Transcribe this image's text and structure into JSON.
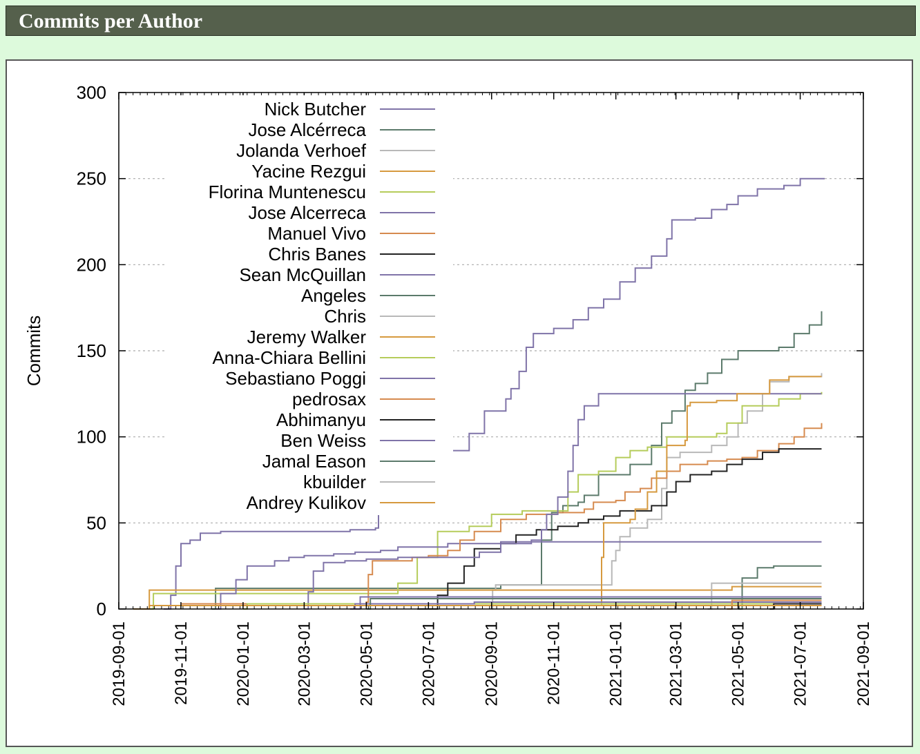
{
  "header": {
    "title": "Commits per Author"
  },
  "colors": {
    "header_bg": "#55604c",
    "page_bg": "#ddfadc"
  },
  "chart_data": {
    "type": "line",
    "title": "",
    "xlabel": "",
    "ylabel": "Commits",
    "x_type": "date",
    "xlim": [
      "2019-09-01",
      "2021-09-01"
    ],
    "ylim": [
      0,
      300
    ],
    "xticks": [
      "2019-09-01",
      "2019-11-01",
      "2020-01-01",
      "2020-03-01",
      "2020-05-01",
      "2020-07-01",
      "2020-09-01",
      "2020-11-01",
      "2021-01-01",
      "2021-03-01",
      "2021-05-01",
      "2021-07-01",
      "2021-09-01"
    ],
    "yticks": [
      0,
      50,
      100,
      150,
      200,
      250,
      300
    ],
    "grid": "y-dashed",
    "legend_position": "top-left",
    "series": [
      {
        "name": "Nick Butcher",
        "color": "#7f73a8",
        "points": [
          [
            "2019-10-15",
            0
          ],
          [
            "2019-10-22",
            8
          ],
          [
            "2019-10-27",
            25
          ],
          [
            "2019-11-01",
            38
          ],
          [
            "2019-11-10",
            40
          ],
          [
            "2019-11-20",
            44
          ],
          [
            "2019-12-10",
            45
          ],
          [
            "2020-04-15",
            46
          ],
          [
            "2020-05-10",
            47
          ],
          [
            "2020-05-13",
            60
          ],
          [
            "2020-05-20",
            66
          ],
          [
            "2020-06-01",
            72
          ],
          [
            "2020-06-20",
            80
          ],
          [
            "2020-07-05",
            88
          ],
          [
            "2020-07-20",
            92
          ],
          [
            "2020-08-10",
            102
          ],
          [
            "2020-08-25",
            115
          ],
          [
            "2020-09-15",
            122
          ],
          [
            "2020-09-20",
            128
          ],
          [
            "2020-09-28",
            138
          ],
          [
            "2020-10-05",
            152
          ],
          [
            "2020-10-12",
            160
          ],
          [
            "2020-11-01",
            163
          ],
          [
            "2020-11-20",
            168
          ],
          [
            "2020-12-05",
            175
          ],
          [
            "2020-12-20",
            180
          ],
          [
            "2021-01-05",
            190
          ],
          [
            "2021-01-20",
            198
          ],
          [
            "2021-02-05",
            205
          ],
          [
            "2021-02-20",
            215
          ],
          [
            "2021-02-25",
            226
          ],
          [
            "2021-03-20",
            227
          ],
          [
            "2021-04-05",
            232
          ],
          [
            "2021-04-20",
            235
          ],
          [
            "2021-05-01",
            240
          ],
          [
            "2021-05-20",
            244
          ],
          [
            "2021-06-15",
            246
          ],
          [
            "2021-07-01",
            250
          ],
          [
            "2021-07-25",
            250
          ]
        ]
      },
      {
        "name": "Jose Alcérreca",
        "color": "#5b7a6b",
        "points": [
          [
            "2019-12-01",
            0
          ],
          [
            "2019-12-05",
            12
          ],
          [
            "2020-09-10",
            14
          ],
          [
            "2020-10-20",
            40
          ],
          [
            "2020-10-30",
            56
          ],
          [
            "2020-11-10",
            60
          ],
          [
            "2020-11-25",
            62
          ],
          [
            "2020-12-01",
            66
          ],
          [
            "2020-12-15",
            78
          ],
          [
            "2021-01-15",
            84
          ],
          [
            "2021-02-05",
            95
          ],
          [
            "2021-02-15",
            108
          ],
          [
            "2021-02-25",
            115
          ],
          [
            "2021-03-10",
            127
          ],
          [
            "2021-03-20",
            131
          ],
          [
            "2021-04-01",
            137
          ],
          [
            "2021-04-15",
            145
          ],
          [
            "2021-05-01",
            150
          ],
          [
            "2021-06-10",
            152
          ],
          [
            "2021-06-25",
            160
          ],
          [
            "2021-07-10",
            165
          ],
          [
            "2021-07-22",
            173
          ]
        ]
      },
      {
        "name": "Jolanda Verhoef",
        "color": "#b8b8b8",
        "points": [
          [
            "2020-09-01",
            0
          ],
          [
            "2020-09-02",
            11
          ],
          [
            "2020-09-05",
            14
          ],
          [
            "2020-12-25",
            14
          ],
          [
            "2020-12-28",
            28
          ],
          [
            "2021-01-01",
            34
          ],
          [
            "2021-01-05",
            42
          ],
          [
            "2021-01-15",
            47
          ],
          [
            "2021-02-01",
            52
          ],
          [
            "2021-02-15",
            70
          ],
          [
            "2021-02-20",
            88
          ],
          [
            "2021-03-05",
            91
          ],
          [
            "2021-04-05",
            95
          ],
          [
            "2021-04-20",
            100
          ],
          [
            "2021-05-01",
            108
          ],
          [
            "2021-05-10",
            115
          ],
          [
            "2021-05-25",
            125
          ],
          [
            "2021-06-01",
            132
          ],
          [
            "2021-06-20",
            135
          ],
          [
            "2021-07-22",
            137
          ]
        ]
      },
      {
        "name": "Yacine Rezgui",
        "color": "#d6993e",
        "points": [
          [
            "2019-09-20",
            0
          ],
          [
            "2019-10-01",
            11
          ],
          [
            "2021-04-15",
            11
          ],
          [
            "2021-04-25",
            13
          ],
          [
            "2021-07-22",
            13
          ]
        ]
      },
      {
        "name": "Florina Muntenescu",
        "color": "#b5cc5a",
        "points": [
          [
            "2019-09-25",
            0
          ],
          [
            "2019-10-05",
            9
          ],
          [
            "2020-06-01",
            15
          ],
          [
            "2020-06-20",
            30
          ],
          [
            "2020-07-10",
            45
          ],
          [
            "2020-08-10",
            48
          ],
          [
            "2020-09-01",
            55
          ],
          [
            "2020-10-01",
            57
          ],
          [
            "2020-11-15",
            68
          ],
          [
            "2020-11-25",
            78
          ],
          [
            "2020-12-15",
            80
          ],
          [
            "2021-01-01",
            88
          ],
          [
            "2021-01-15",
            92
          ],
          [
            "2021-02-01",
            94
          ],
          [
            "2021-02-20",
            100
          ],
          [
            "2021-04-10",
            102
          ],
          [
            "2021-04-20",
            108
          ],
          [
            "2021-05-05",
            118
          ],
          [
            "2021-06-10",
            122
          ],
          [
            "2021-07-01",
            125
          ],
          [
            "2021-07-22",
            126
          ]
        ]
      },
      {
        "name": "Jose Alcerreca",
        "color": "#7f73a8",
        "points": [
          [
            "2019-12-05",
            0
          ],
          [
            "2019-12-10",
            9
          ],
          [
            "2019-12-25",
            17
          ],
          [
            "2020-01-05",
            25
          ],
          [
            "2020-02-01",
            28
          ],
          [
            "2020-02-15",
            30
          ],
          [
            "2020-03-01",
            31
          ],
          [
            "2020-03-30",
            32
          ],
          [
            "2020-04-20",
            33
          ],
          [
            "2020-05-15",
            34
          ],
          [
            "2020-06-01",
            36
          ],
          [
            "2020-07-20",
            38
          ],
          [
            "2020-09-10",
            39
          ],
          [
            "2021-07-22",
            39
          ]
        ]
      },
      {
        "name": "Manuel Vivo",
        "color": "#d68a4e",
        "points": [
          [
            "2019-11-01",
            3
          ],
          [
            "2020-04-01",
            3
          ],
          [
            "2020-05-01",
            4
          ],
          [
            "2020-05-03",
            20
          ],
          [
            "2020-05-07",
            28
          ],
          [
            "2020-06-15",
            30
          ],
          [
            "2020-07-01",
            31
          ],
          [
            "2020-07-20",
            34
          ],
          [
            "2020-08-01",
            40
          ],
          [
            "2020-08-15",
            45
          ],
          [
            "2020-09-10",
            52
          ],
          [
            "2020-10-05",
            55
          ],
          [
            "2020-11-05",
            56
          ],
          [
            "2020-12-01",
            58
          ],
          [
            "2020-12-10",
            62
          ],
          [
            "2021-01-01",
            63
          ],
          [
            "2021-01-10",
            68
          ],
          [
            "2021-01-25",
            70
          ],
          [
            "2021-02-05",
            76
          ],
          [
            "2021-02-20",
            80
          ],
          [
            "2021-03-05",
            84
          ],
          [
            "2021-04-01",
            86
          ],
          [
            "2021-04-20",
            87
          ],
          [
            "2021-05-05",
            88
          ],
          [
            "2021-05-20",
            92
          ],
          [
            "2021-06-10",
            96
          ],
          [
            "2021-06-25",
            100
          ],
          [
            "2021-07-05",
            105
          ],
          [
            "2021-07-22",
            108
          ]
        ]
      },
      {
        "name": "Chris Banes",
        "color": "#222222",
        "points": [
          [
            "2020-06-20",
            0
          ],
          [
            "2020-07-10",
            8
          ],
          [
            "2020-07-20",
            15
          ],
          [
            "2020-08-05",
            25
          ],
          [
            "2020-08-15",
            35
          ],
          [
            "2020-09-10",
            38
          ],
          [
            "2020-09-25",
            43
          ],
          [
            "2020-10-15",
            46
          ],
          [
            "2020-11-05",
            48
          ],
          [
            "2020-11-25",
            50
          ],
          [
            "2020-12-05",
            52
          ],
          [
            "2020-12-20",
            54
          ],
          [
            "2021-01-05",
            57
          ],
          [
            "2021-02-05",
            60
          ],
          [
            "2021-02-20",
            68
          ],
          [
            "2021-03-01",
            74
          ],
          [
            "2021-03-15",
            78
          ],
          [
            "2021-04-05",
            80
          ],
          [
            "2021-04-20",
            84
          ],
          [
            "2021-05-05",
            87
          ],
          [
            "2021-05-25",
            91
          ],
          [
            "2021-06-10",
            93
          ],
          [
            "2021-07-22",
            93
          ]
        ]
      },
      {
        "name": "Sean McQuillan",
        "color": "#7f73a8",
        "points": [
          [
            "2020-03-01",
            0
          ],
          [
            "2020-03-05",
            10
          ],
          [
            "2020-03-10",
            22
          ],
          [
            "2020-03-20",
            27
          ],
          [
            "2020-04-10",
            28
          ],
          [
            "2020-05-01",
            29
          ],
          [
            "2020-06-01",
            30
          ],
          [
            "2020-08-20",
            33
          ],
          [
            "2020-09-10",
            38
          ],
          [
            "2020-10-10",
            40
          ],
          [
            "2020-10-20",
            46
          ],
          [
            "2020-10-25",
            55
          ],
          [
            "2020-11-05",
            65
          ],
          [
            "2020-11-15",
            80
          ],
          [
            "2020-11-20",
            95
          ],
          [
            "2020-11-25",
            110
          ],
          [
            "2020-12-01",
            118
          ],
          [
            "2020-12-15",
            125
          ],
          [
            "2021-07-22",
            125
          ]
        ]
      },
      {
        "name": "Angeles",
        "color": "#5b7a6b",
        "points": [
          [
            "2021-05-01",
            0
          ],
          [
            "2021-05-05",
            18
          ],
          [
            "2021-05-20",
            24
          ],
          [
            "2021-06-05",
            25
          ],
          [
            "2021-07-22",
            25
          ]
        ]
      },
      {
        "name": "Chris",
        "color": "#b8b8b8",
        "points": [
          [
            "2021-04-01",
            0
          ],
          [
            "2021-04-05",
            15
          ],
          [
            "2021-07-22",
            15
          ]
        ]
      },
      {
        "name": "Jeremy Walker",
        "color": "#d6993e",
        "points": [
          [
            "2020-11-25",
            2
          ],
          [
            "2020-12-15",
            2
          ],
          [
            "2020-12-18",
            30
          ],
          [
            "2020-12-20",
            50
          ],
          [
            "2021-01-15",
            52
          ],
          [
            "2021-01-20",
            58
          ],
          [
            "2021-02-01",
            68
          ],
          [
            "2021-02-10",
            80
          ],
          [
            "2021-02-20",
            95
          ],
          [
            "2021-03-10",
            98
          ],
          [
            "2021-03-12",
            118
          ],
          [
            "2021-03-15",
            120
          ],
          [
            "2021-04-10",
            121
          ],
          [
            "2021-04-20",
            121
          ],
          [
            "2021-04-30",
            125
          ],
          [
            "2021-05-25",
            125
          ],
          [
            "2021-06-01",
            133
          ],
          [
            "2021-06-20",
            135
          ],
          [
            "2021-07-22",
            135
          ]
        ]
      },
      {
        "name": "Anna-Chiara Bellini",
        "color": "#b5cc5a",
        "points": [
          [
            "2020-01-01",
            0
          ],
          [
            "2020-01-05",
            3
          ],
          [
            "2021-07-22",
            3
          ]
        ]
      },
      {
        "name": "Sebastiano Poggi",
        "color": "#7f73a8",
        "points": [
          [
            "2020-04-15",
            0
          ],
          [
            "2020-04-20",
            3
          ],
          [
            "2020-08-15",
            4
          ],
          [
            "2021-07-22",
            4
          ]
        ]
      },
      {
        "name": "pedrosax",
        "color": "#d68a4e",
        "points": [
          [
            "2021-04-20",
            0
          ],
          [
            "2021-04-25",
            5
          ],
          [
            "2021-07-22",
            5
          ]
        ]
      },
      {
        "name": "Abhimanyu",
        "color": "#222222",
        "points": [
          [
            "2021-06-01",
            0
          ],
          [
            "2021-06-05",
            3
          ],
          [
            "2021-07-22",
            3
          ]
        ]
      },
      {
        "name": "Ben Weiss",
        "color": "#7f73a8",
        "points": [
          [
            "2020-04-20",
            0
          ],
          [
            "2020-04-25",
            7
          ],
          [
            "2021-07-22",
            7
          ]
        ]
      },
      {
        "name": "Jamal Eason",
        "color": "#5b7a6b",
        "points": [
          [
            "2020-05-01",
            0
          ],
          [
            "2020-05-05",
            6
          ],
          [
            "2021-07-22",
            6
          ]
        ]
      },
      {
        "name": "kbuilder",
        "color": "#b8b8b8",
        "points": [
          [
            "2021-02-01",
            0
          ],
          [
            "2021-02-05",
            2
          ],
          [
            "2021-07-22",
            2
          ]
        ]
      },
      {
        "name": "Andrey Kulikov",
        "color": "#d6993e",
        "points": [
          [
            "2019-09-15",
            0
          ],
          [
            "2019-10-01",
            2
          ],
          [
            "2021-07-22",
            2
          ]
        ]
      }
    ]
  }
}
